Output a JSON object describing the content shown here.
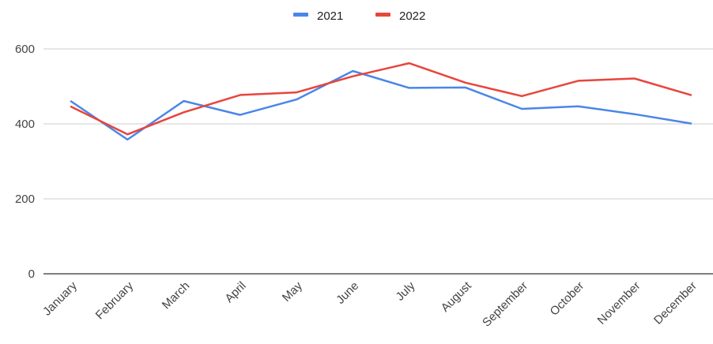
{
  "chart_data": {
    "type": "line",
    "title": "",
    "xlabel": "",
    "ylabel": "",
    "categories": [
      "January",
      "February",
      "March",
      "April",
      "May",
      "June",
      "July",
      "August",
      "September",
      "October",
      "November",
      "December"
    ],
    "series": [
      {
        "name": "2021",
        "color": "#4a86e8",
        "values": [
          460,
          358,
          461,
          424,
          465,
          541,
          496,
          497,
          440,
          447,
          426,
          401
        ]
      },
      {
        "name": "2022",
        "color": "#e8453c",
        "values": [
          446,
          372,
          431,
          477,
          484,
          527,
          562,
          510,
          474,
          515,
          521,
          477
        ]
      }
    ],
    "yticks": [
      0,
      200,
      400,
      600
    ],
    "ylim": [
      0,
      600
    ],
    "grid": true,
    "legend_position": "top"
  }
}
